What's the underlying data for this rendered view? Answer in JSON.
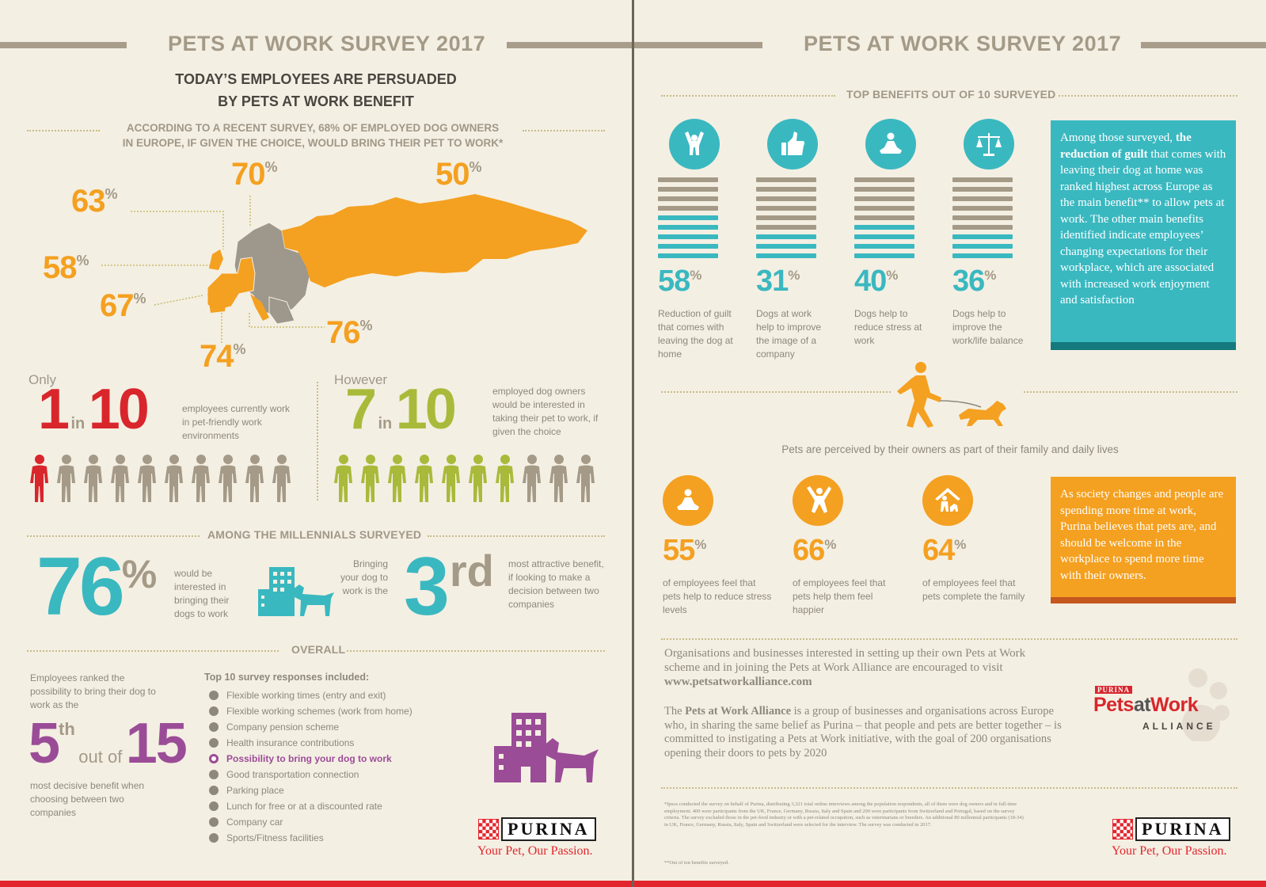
{
  "colors": {
    "background": "#f4efe3",
    "orange": "#f4a020",
    "red": "#e3262d",
    "green": "#a9ba3a",
    "teal": "#3ab8c0",
    "purple": "#9b4c97",
    "grey": "#a49a87"
  },
  "left": {
    "header": "PETS AT WORK SURVEY 2017",
    "subtitle_line1": "TODAY’S EMPLOYEES ARE PERSUADED",
    "subtitle_line2": "BY PETS AT WORK BENEFIT",
    "survey_line1": "ACCORDING TO A RECENT SURVEY, 68% OF EMPLOYED DOG OWNERS",
    "survey_line2": "IN EUROPE, IF GIVEN THE CHOICE, WOULD BRING THEIR PET TO WORK*",
    "map_percentages": [
      {
        "value": "63",
        "sign": "%"
      },
      {
        "value": "70",
        "sign": "%"
      },
      {
        "value": "50",
        "sign": "%"
      },
      {
        "value": "58",
        "sign": "%"
      },
      {
        "value": "67",
        "sign": "%"
      },
      {
        "value": "76",
        "sign": "%"
      },
      {
        "value": "74",
        "sign": "%"
      }
    ],
    "only_label": "Only",
    "one_in_ten": {
      "a": "1",
      "in": "in",
      "b": "10",
      "text": "employees currently work in pet-friendly work environments",
      "highlighted": 1,
      "total": 10
    },
    "however_label": "However",
    "seven_in_ten": {
      "a": "7",
      "in": "in",
      "b": "10",
      "text": "employed dog owners would be interested in taking their pet to work, if given the choice",
      "highlighted": 7,
      "total": 10
    },
    "millennials_label": "AMONG THE MILLENNIALS SURVEYED",
    "millennials_pct": "76",
    "millennials_pct_sign": "%",
    "millennials_text": "would be interested in bringing their dogs to work",
    "bringing_text": "Bringing your dog to work is the",
    "third": "3",
    "third_suffix": "rd",
    "third_text": "most attractive benefit, if looking to make a decision between two companies",
    "overall_label": "OVERALL",
    "ranked_text": "Employees ranked the possibility to bring their dog to work as the",
    "fifth": "5",
    "fifth_suffix": "th",
    "out_of": "out of",
    "fifteen": "15",
    "decisive_text": "most decisive benefit when choosing between two companies",
    "top10_title": "Top 10 survey responses included:",
    "top10": [
      "Flexible working times (entry and exit)",
      "Flexible working schemes (work from home)",
      "Company pension scheme",
      "Health insurance contributions",
      "Possibility to bring your dog to work",
      "Good transportation connection",
      "Parking place",
      "Lunch for free or at a discounted rate",
      "Company car",
      "Sports/Fitness facilities"
    ],
    "brand": "PURINA",
    "tagline": "Your Pet, Our Passion."
  },
  "right": {
    "header": "PETS AT WORK SURVEY 2017",
    "top_benefits_label": "TOP BENEFITS OUT OF 10 SURVEYED",
    "benefits": [
      {
        "pct": "58",
        "sign": "%",
        "text": "Reduction of guilt that comes with leaving the dog at home",
        "icon": "person-cheer-icon",
        "level": 0.58
      },
      {
        "pct": "31",
        "sign": "%",
        "text": "Dogs at work help to improve the image of a company",
        "icon": "thumbs-up-icon",
        "level": 0.31
      },
      {
        "pct": "40",
        "sign": "%",
        "text": "Dogs help to reduce stress at work",
        "icon": "meditation-icon",
        "level": 0.4
      },
      {
        "pct": "36",
        "sign": "%",
        "text": "Dogs help to improve the work/life balance",
        "icon": "scales-icon",
        "level": 0.36
      }
    ],
    "teal_box_pre": "Among those surveyed, ",
    "teal_box_bold": "the reduction of guilt",
    "teal_box_post": " that comes with leaving their dog at home was ranked highest across Europe as the main benefit** to allow pets at work. The other main benefits identified indicate employees’ changing expectations for their workplace, which are associated with increased work enjoyment and satisfaction",
    "family_text": "Pets are perceived by their owners as part of their family and daily lives",
    "feelings": [
      {
        "pct": "55",
        "sign": "%",
        "text": "of employees feel that pets help to reduce stress levels",
        "icon": "meditation-icon"
      },
      {
        "pct": "66",
        "sign": "%",
        "text": "of employees feel that pets help them feel happier",
        "icon": "jumping-person-icon"
      },
      {
        "pct": "64",
        "sign": "%",
        "text": "of employees feel that pets complete the family",
        "icon": "family-home-icon"
      }
    ],
    "orange_box": "As society changes and people are spending more time at work, Purina believes that pets are, and should be welcome in the workplace to spend more time with their owners.",
    "org_text": "Organisations and businesses interested in setting up their own Pets at Work scheme and in joining the Pets at Work Alliance are encouraged to visit",
    "url": "www.petsatworkalliance.com",
    "alliance_pre": "The ",
    "alliance_bold": "Pets at Work Alliance",
    "alliance_post": " is a group of businesses and organisations across Europe who, in sharing the same belief as Purina – that people and pets are better together – is committed to instigating a Pets at Work initiative, with the goal of 200 organisations opening their doors to pets by 2020",
    "logo_small": "PURINA",
    "logo_pets": "Pets",
    "logo_at": "at",
    "logo_work": "Work",
    "logo_alliance": "ALLIANCE",
    "footnote1": "*Ipsos conducted the survey on behalf of Purina, distributing 3,321 total online interviews among the population respondents, all of them were dog owners and in full-time employment. 400 were participants from the UK, France, Germany, Russia, Italy and Spain and 200 were participants from Switzerland and Portugal, based on the survey criteria. The survey excluded those in the pet-food industry or with a pet-related occupation, such as veterinarians or breeders. An additional 80 millennial participants (18-34) in UK, France, Germany, Russia, Italy, Spain and Switzerland were selected for the interview. The survey was conducted in 2017.",
    "footnote2": "**Out of ten benefits surveyed.",
    "brand": "PURINA",
    "tagline": "Your Pet, Our Passion."
  }
}
